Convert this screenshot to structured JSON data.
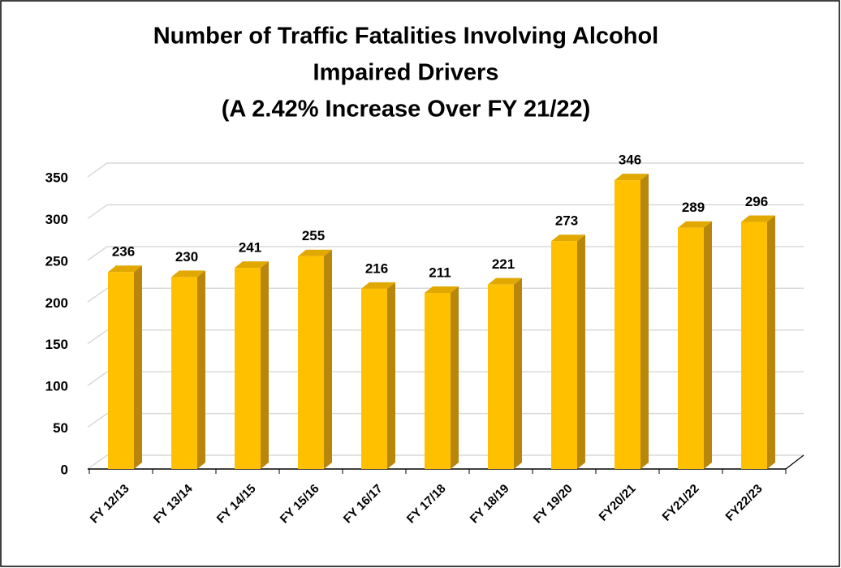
{
  "chart_data": {
    "type": "bar",
    "title": [
      "Number of Traffic Fatalities Involving Alcohol",
      "Impaired Drivers",
      "(A 2.42% Increase Over FY 21/22)"
    ],
    "categories": [
      "FY 12/13",
      "FY 13/14",
      "FY 14/15",
      "FY 15/16",
      "FY 16/17",
      "FY 17/18",
      "FY 18/19",
      "FY 19/20",
      "FY20/21",
      "FY21/22",
      "FY22/23"
    ],
    "values": [
      236,
      230,
      241,
      255,
      216,
      211,
      221,
      273,
      346,
      289,
      296
    ],
    "color": "#ffc000",
    "ylim": [
      0,
      350
    ],
    "yticks": [
      0,
      50,
      100,
      150,
      200,
      250,
      300,
      350
    ],
    "grid": true
  }
}
